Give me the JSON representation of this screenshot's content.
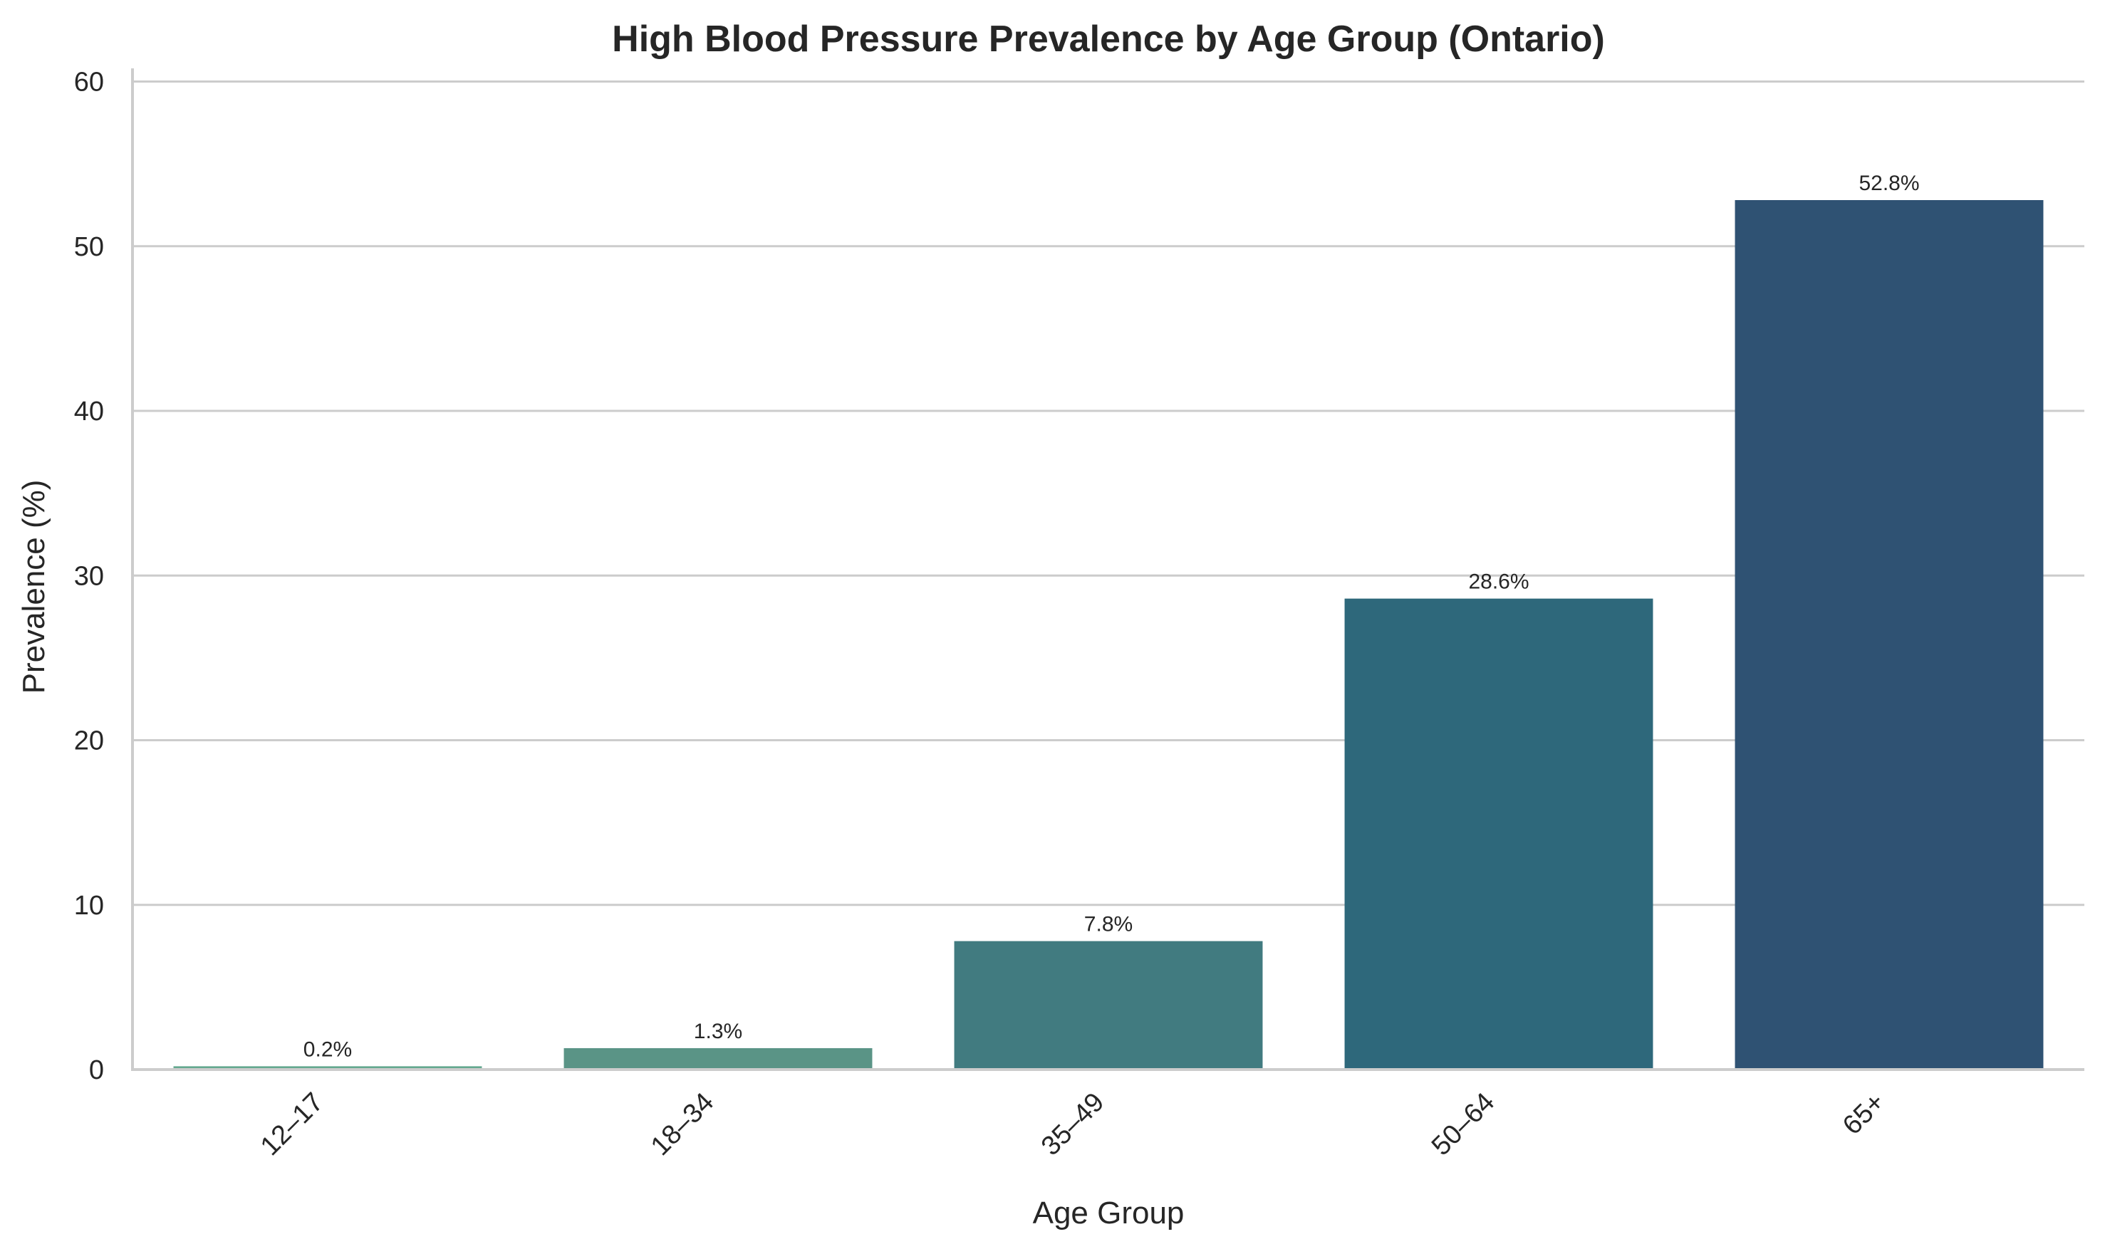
{
  "chart_data": {
    "type": "bar",
    "title": "High Blood Pressure Prevalence by Age Group (Ontario)",
    "xlabel": "Age Group",
    "ylabel": "Prevalence (%)",
    "categories": [
      "12–17",
      "18–34",
      "35–49",
      "50–64",
      "65+"
    ],
    "values": [
      0.2,
      1.3,
      7.8,
      28.6,
      52.8
    ],
    "value_labels": [
      "0.2%",
      "1.3%",
      "7.8%",
      "28.6%",
      "52.8%"
    ],
    "ylim": [
      0,
      60.8
    ],
    "yticks": [
      0,
      10,
      20,
      30,
      40,
      50,
      60
    ],
    "ytick_labels": [
      "0",
      "10",
      "20",
      "30",
      "40",
      "50",
      "60"
    ],
    "grid": "horizontal",
    "colors": [
      "#64a88f",
      "#5a9486",
      "#417b80",
      "#2e687b",
      "#2f5273"
    ],
    "axis_color": "#cccccc",
    "background": "#ffffff"
  }
}
